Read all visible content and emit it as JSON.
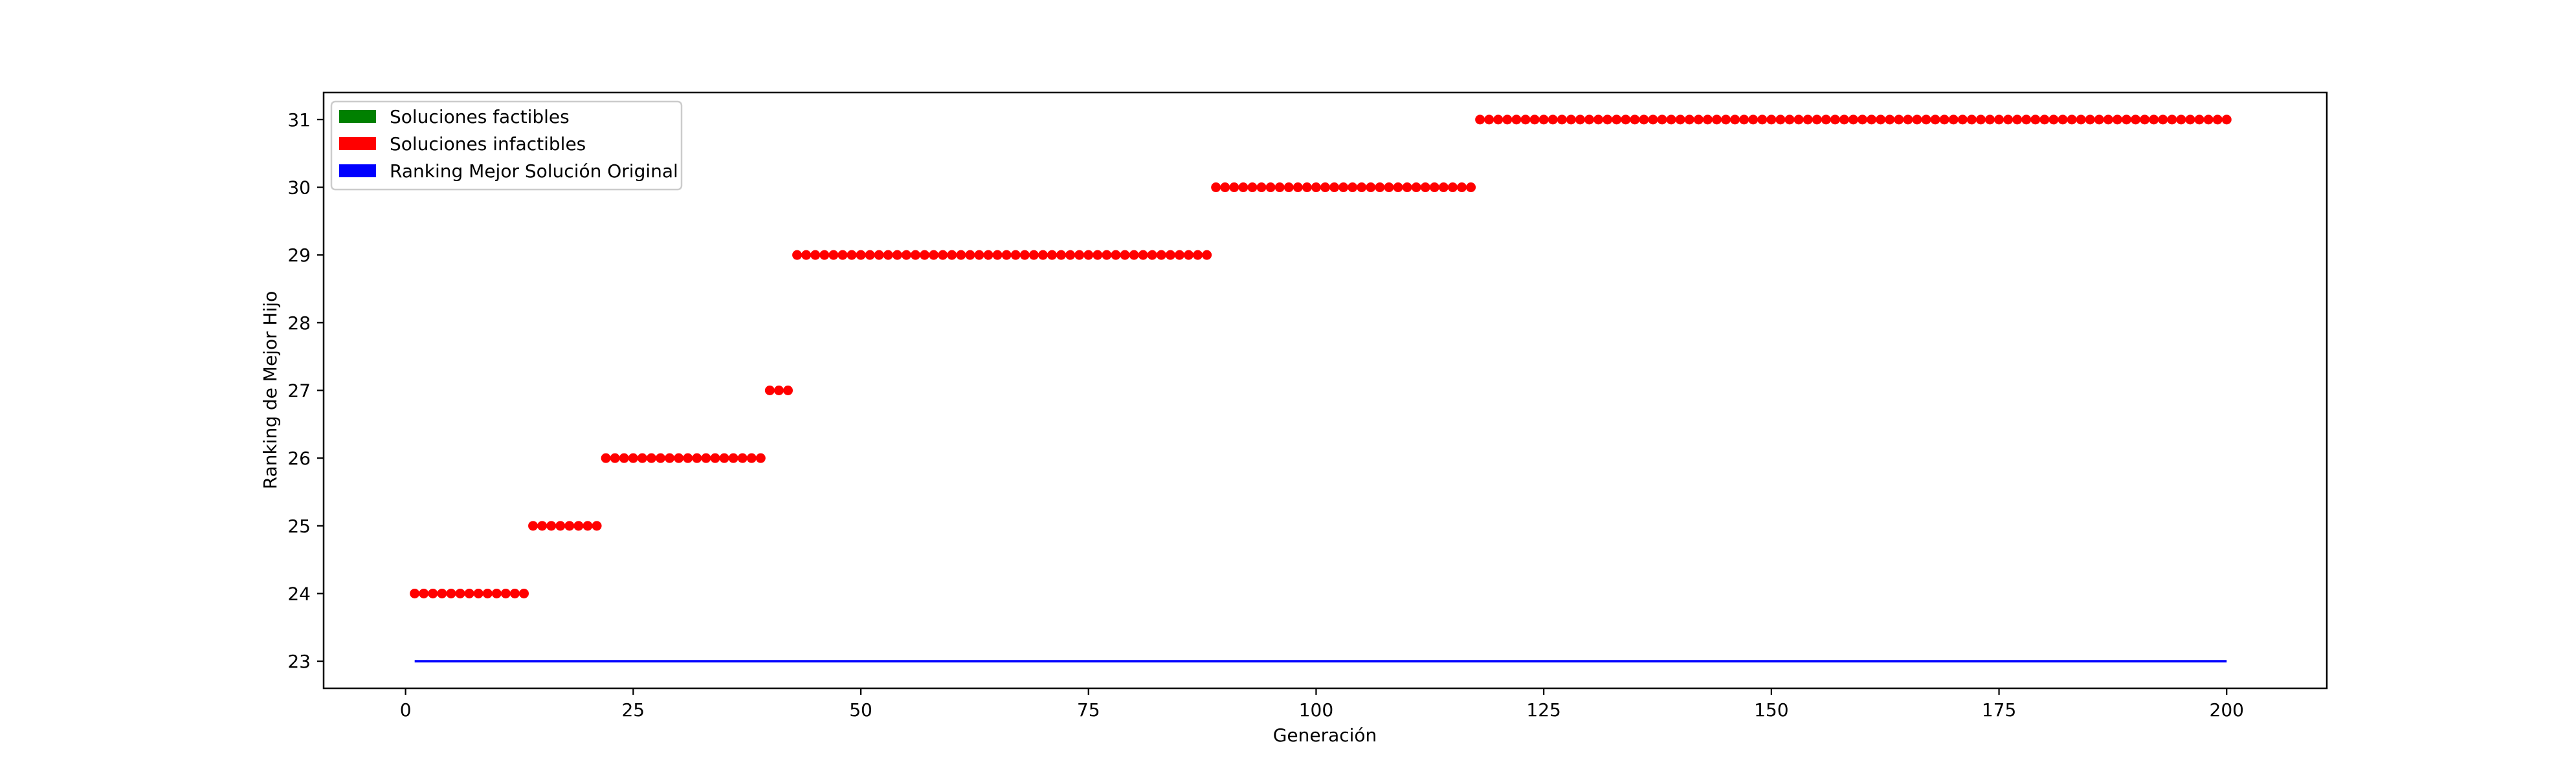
{
  "chart_data": {
    "type": "scatter",
    "xlabel": "Generación",
    "ylabel": "Ranking de Mejor Hijo",
    "xlim": [
      -9,
      211
    ],
    "ylim": [
      22.6,
      31.4
    ],
    "x_ticks": [
      0,
      25,
      50,
      75,
      100,
      125,
      150,
      175,
      200
    ],
    "y_ticks": [
      23,
      24,
      25,
      26,
      27,
      28,
      29,
      30,
      31
    ],
    "grid": false,
    "legend_position": "top-left",
    "legend": [
      {
        "label": "Soluciones factibles",
        "color": "#008000"
      },
      {
        "label": "Soluciones infactibles",
        "color": "#ff0000"
      },
      {
        "label": "Ranking Mejor Solución Original",
        "color": "#0000ff"
      }
    ],
    "series": [
      {
        "kind": "points",
        "color": "#ff0000",
        "runs": [
          {
            "x_start": 1,
            "x_end": 13,
            "y": 24
          },
          {
            "x_start": 14,
            "x_end": 21,
            "y": 25
          },
          {
            "x_start": 22,
            "x_end": 39,
            "y": 26
          },
          {
            "x_start": 40,
            "x_end": 42,
            "y": 27
          },
          {
            "x_start": 43,
            "x_end": 88,
            "y": 29
          },
          {
            "x_start": 89,
            "x_end": 117,
            "y": 30
          },
          {
            "x_start": 118,
            "x_end": 200,
            "y": 31
          }
        ]
      },
      {
        "kind": "line",
        "color": "#0000ff",
        "x": [
          1,
          200
        ],
        "y": [
          23,
          23
        ]
      }
    ]
  }
}
